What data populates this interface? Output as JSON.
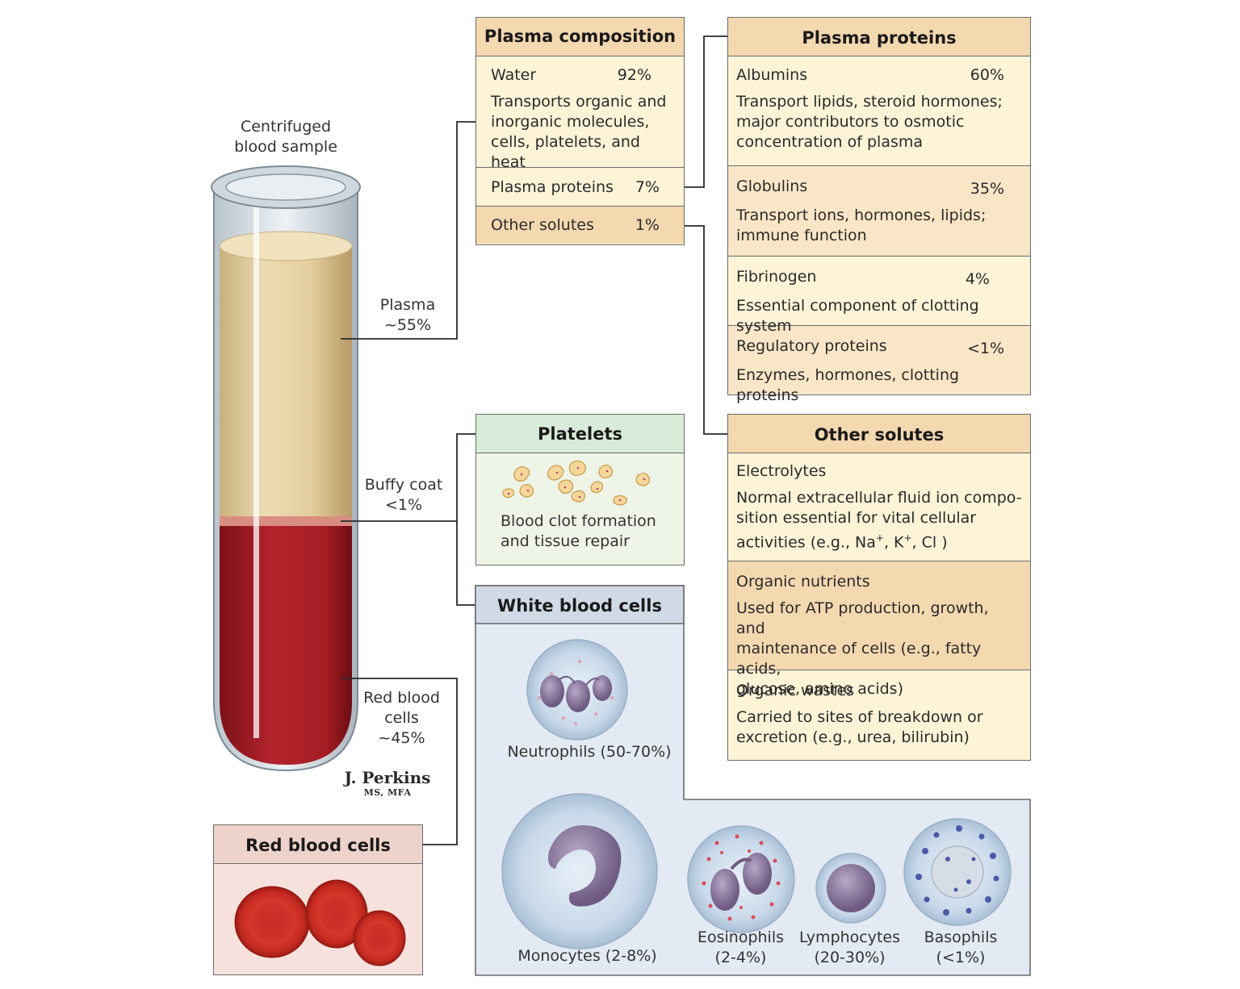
{
  "tube": {
    "title_lines": [
      "Centrifuged",
      "blood sample"
    ],
    "plasma_label": [
      "Plasma",
      "~55%"
    ],
    "buffy_label": [
      "Buffy coat",
      "<1%"
    ],
    "rbc_label": [
      "Red blood",
      "cells",
      "~45%"
    ]
  },
  "signature": {
    "name": "J. Perkins",
    "credentials": "MS, MFA"
  },
  "plasma_composition": {
    "title": "Plasma composition",
    "water": {
      "name": "Water",
      "pct": "92%",
      "desc": [
        "Transports organic and",
        "inorganic molecules,",
        "cells, platelets, and heat"
      ]
    },
    "proteins": {
      "name": "Plasma proteins",
      "pct": "7%"
    },
    "solutes": {
      "name": "Other solutes",
      "pct": "1%"
    }
  },
  "plasma_proteins": {
    "title": "Plasma proteins",
    "items": [
      {
        "name": "Albumins",
        "pct": "60%",
        "desc": [
          "Transport lipids, steroid hormones;",
          "major contributors to osmotic",
          "concentration of plasma"
        ]
      },
      {
        "name": "Globulins",
        "pct": "35%",
        "desc": [
          "Transport ions, hormones, lipids;",
          "immune function"
        ]
      },
      {
        "name": "Fibrinogen",
        "pct": "4%",
        "desc": [
          "Essential component of clotting system"
        ]
      },
      {
        "name": "Regulatory proteins",
        "pct": "<1%",
        "desc": [
          "Enzymes, hormones, clotting proteins"
        ]
      }
    ]
  },
  "platelets": {
    "title": "Platelets",
    "desc": [
      "Blood clot formation",
      "and tissue repair"
    ]
  },
  "other_solutes": {
    "title": "Other solutes",
    "items": [
      {
        "name": "Electrolytes",
        "desc": [
          "Normal extracellular fluid ion compo-",
          "sition essential for vital cellular"
        ],
        "desc_last": {
          "pre": "activities (e.g., Na",
          "sup1": "+",
          "mid": ", K",
          "sup2": "+",
          "post": ", Cl )"
        }
      },
      {
        "name": "Organic nutrients",
        "desc": [
          "Used for ATP production, growth, and",
          "maintenance of cells (e.g., fatty acids,",
          "glucose, amino acids)"
        ]
      },
      {
        "name": "Organic wastes",
        "desc": [
          "Carried to sites of breakdown or",
          "excretion (e.g., urea, bilirubin)"
        ]
      }
    ]
  },
  "white_blood_cells": {
    "title": "White blood cells",
    "neutrophils": [
      "Neutrophils (50-70%)"
    ],
    "monocytes": [
      "Monocytes (2-8%)"
    ],
    "eosinophils": [
      "Eosinophils",
      "(2-4%)"
    ],
    "lymphocytes": [
      "Lymphocytes",
      "(20-30%)"
    ],
    "basophils": [
      "Basophils",
      "(<1%)"
    ]
  },
  "red_blood_cells": {
    "title": "Red blood cells"
  },
  "colors": {
    "plasma": "#e3cfa0",
    "red": "#b0222a",
    "cream": "#fdf4d8",
    "tan": "#f4d8b0",
    "platelet_green": "#d9ecd9",
    "wbc_blue": "#e4eaf3",
    "wbc_header": "#d2d9e6",
    "rbc_pink": "#f6e1dc"
  }
}
